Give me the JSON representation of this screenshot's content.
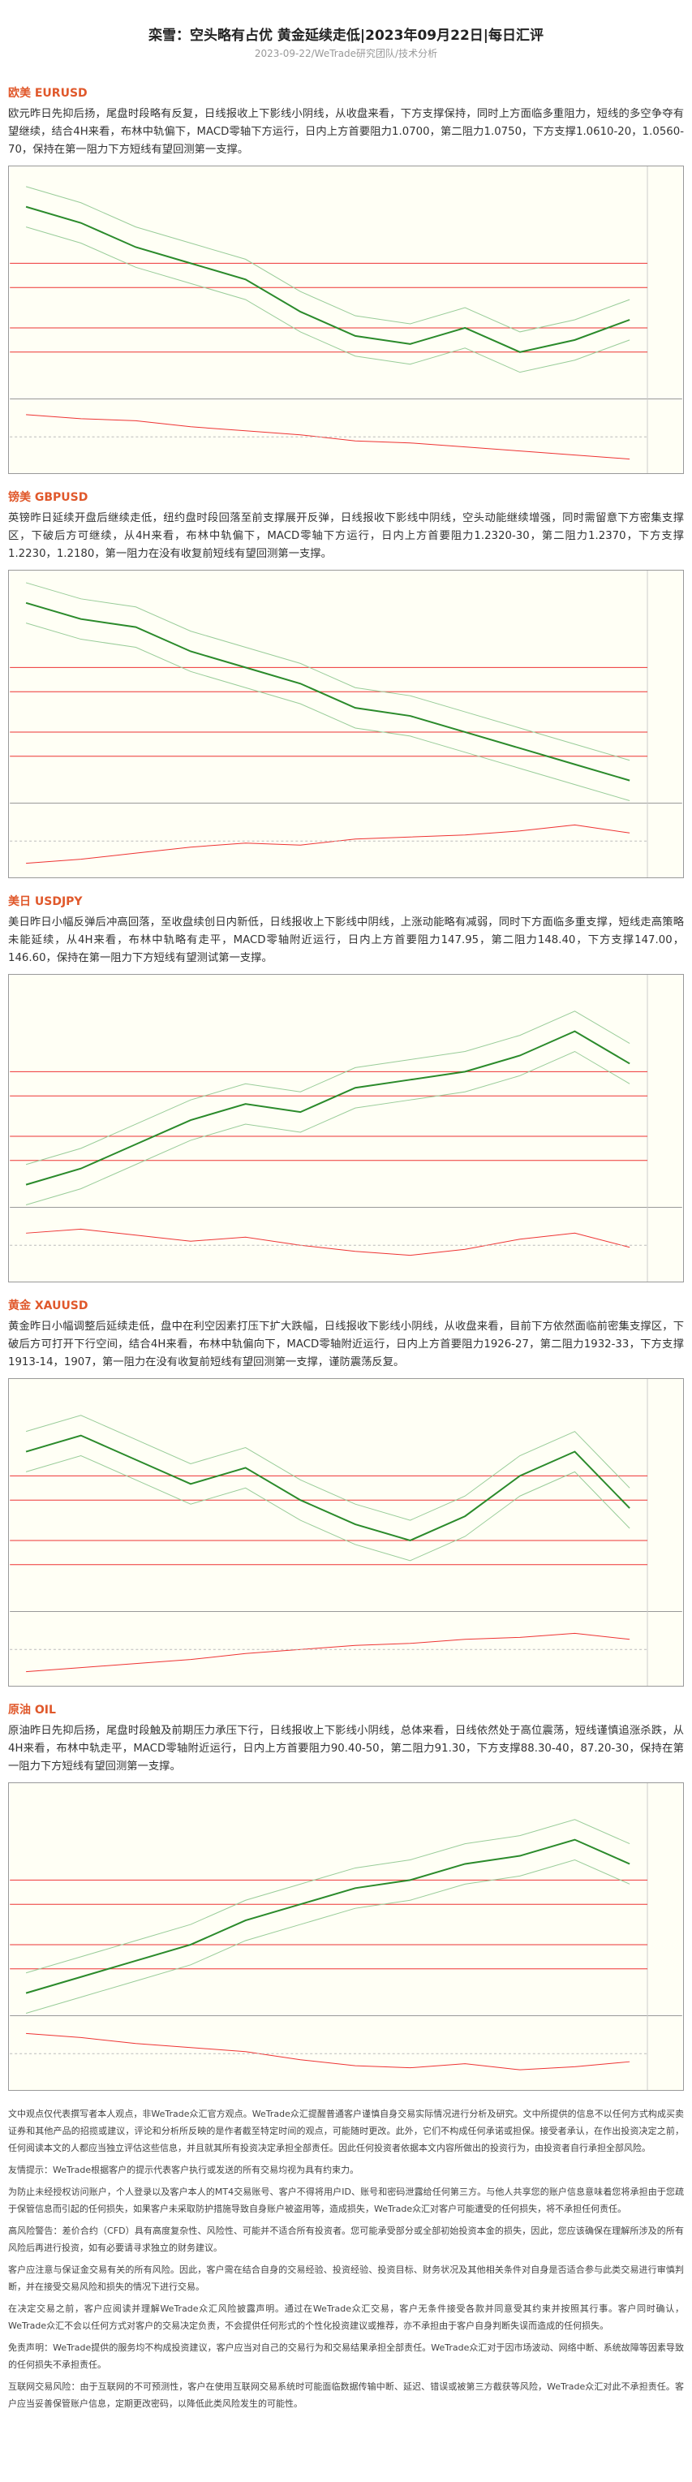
{
  "header": {
    "title": "栾雪：空头略有占优 黄金延续走低|2023年09月22日|每日汇评",
    "meta": "2023-09-22/WeTrade研究团队/技术分析"
  },
  "sections": [
    {
      "heading": "欧美 EURUSD",
      "text": "欧元昨日先抑后扬，尾盘时段略有反复，日线报收上下影线小阴线，从收盘来看，下方支撑保持，同时上方面临多重阻力，短线的多空争夺有望继续，结合4H来看，布林中轨偏下，MACD零轴下方运行，日内上方首要阻力1.0700，第二阻力1.0750，下方支撑1.0610-20，1.0560-70，保持在第一阻力下方短线有望回测第一支撑。"
    },
    {
      "heading": "镑美 GBPUSD",
      "text": "英镑昨日延续开盘后继续走低，纽约盘时段回落至前支撑展开反弹，日线报收下影线中阴线，空头动能继续增强，同时需留意下方密集支撑区，下破后方可继续，从4H来看，布林中轨偏下，MACD零轴下方运行，日内上方首要阻力1.2320-30，第二阻力1.2370，下方支撑1.2230，1.2180，第一阻力在没有收复前短线有望回测第一支撑。"
    },
    {
      "heading": "美日 USDJPY",
      "text": "美日昨日小幅反弹后冲高回落，至收盘续创日内新低，日线报收上下影线中阴线，上涨动能略有减弱，同时下方面临多重支撑，短线走高策略未能延续，从4H来看，布林中轨略有走平，MACD零轴附近运行，日内上方首要阻力147.95，第二阻力148.40，下方支撑147.00，146.60，保持在第一阻力下方短线有望测试第一支撑。"
    },
    {
      "heading": "黄金 XAUUSD",
      "text": "黄金昨日小幅调整后延续走低，盘中在利空因素打压下扩大跌幅，日线报收下影线小阴线，从收盘来看，目前下方依然面临前密集支撑区，下破后方可打开下行空间，结合4H来看，布林中轨偏向下，MACD零轴附近运行，日内上方首要阻力1926-27，第二阻力1932-33，下方支撑1913-14，1907，第一阻力在没有收复前短线有望回测第一支撑，谨防震荡反复。"
    },
    {
      "heading": "原油 OIL",
      "text": "原油昨日先抑后扬，尾盘时段触及前期压力承压下行，日线报收上下影线小阴线，总体来看，日线依然处于高位震荡，短线谨慎追涨杀跌，从4H来看，布林中轨走平，MACD零轴附近运行，日内上方首要阻力90.40-50，第二阻力91.30，下方支撑88.30-40，87.20-30，保持在第一阻力下方短线有望回测第一支撑。"
    }
  ],
  "disclaimer": [
    "文中观点仅代表撰写者本人观点，非WeTrade众汇官方观点。WeTrade众汇提醒普通客户谨慎自身交易实际情况进行分析及研究。文中所提供的信息不以任何方式构成买卖证券和其他产品的招揽或建议，评论和分析所反映的是作者截至特定时间的观点，可能随时更改。此外，它们不构成任何承诺或担保。接受者承认，在作出投资决定之前，任何阅读本文的人都应当独立评估这些信息，并且就其所有投资决定承担全部责任。因此任何投资者依据本文内容所做出的投资行为，由投资者自行承担全部风险。",
    "友情提示：WeTrade根据客户的提示代表客户执行或发送的所有交易均视为具有约束力。",
    "为防止未经授权访问账户，个人登录以及客户本人的MT4交易账号、客户不得将用户ID、账号和密码泄露给任何第三方。与他人共享您的账户信息意味着您将承担由于您疏于保管信息而引起的任何损失，如果客户未采取防护措施导致自身账户被盗用等，造成损失，WeTrade众汇对客户可能遭受的任何损失，将不承担任何责任。",
    "高风险警告：差价合约（CFD）具有高度复杂性、风险性、可能并不适合所有投资者。您可能承受部分或全部初始投资本金的损失，因此，您应该确保在理解所涉及的所有风险后再进行投资，如有必要请寻求独立的财务建议。",
    "客户应注意与保证金交易有关的所有风险。因此，客户需在结合自身的交易经验、投资经验、投资目标、财务状况及其他相关条件对自身是否适合参与此类交易进行审慎判断，并在接受交易风险和损失的情况下进行交易。",
    "在决定交易之前，客户应阅读并理解WeTrade众汇风险披露声明。通过在WeTrade众汇交易，客户无条件接受各款并同意受其约束并按照其行事。客户同时确认，WeTrade众汇不会以任何方式对客户的交易决定负责，不会提供任何形式的个性化投资建议或推荐，亦不承担由于客户自身判断失误而造成的任何损失。",
    "免责声明：WeTrade提供的服务均不构成投资建议，客户应当对自己的交易行为和交易结果承担全部责任。WeTrade众汇对于因市场波动、网络中断、系统故障等因素导致的任何损失不承担责任。",
    "互联网交易风险：由于互联网的不可预测性，客户在使用互联网交易系统时可能面临数据传输中断、延迟、错误或被第三方截获等风险，WeTrade众汇对此不承担责任。客户应当妥善保管账户信息，定期更改密码，以降低此类风险发生的可能性。"
  ]
}
